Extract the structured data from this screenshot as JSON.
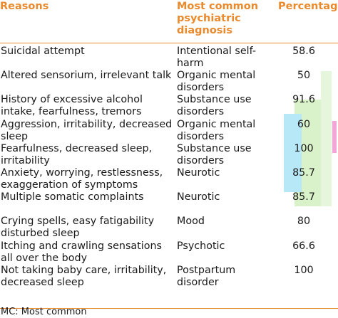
{
  "table": {
    "headers": {
      "reasons": "Reasons",
      "diagnosis": "Most common psychiatric diagnosis",
      "percentage": "Percentage"
    },
    "rows": [
      {
        "reason": "Suicidal attempt",
        "diagnosis": "Intentional self-harm",
        "percentage": "58.6"
      },
      {
        "reason": "Altered sensorium, irrelevant talk",
        "diagnosis": "Organic mental disorders",
        "percentage": "50"
      },
      {
        "reason": "History of excessive alcohol intake, fearfulness, tremors",
        "diagnosis": "Substance use disorders",
        "percentage": "91.6"
      },
      {
        "reason": "Aggression, irritability, decreased sleep",
        "diagnosis": "Organic mental disorders",
        "percentage": "60"
      },
      {
        "reason": "Fearfulness, decreased sleep, irritability",
        "diagnosis": "Substance use disorders",
        "percentage": "100"
      },
      {
        "reason": "Anxiety, worrying, restlessness, exaggeration of symptoms",
        "diagnosis": "Neurotic",
        "percentage": "85.7"
      },
      {
        "reason": "Multiple somatic complaints",
        "diagnosis": "Neurotic",
        "percentage": "85.7"
      },
      {
        "reason": "Crying spells, easy fatigability disturbed sleep",
        "diagnosis": "Mood",
        "percentage": "80"
      },
      {
        "reason": "Itching and crawling sensations all over the body",
        "diagnosis": "Psychotic",
        "percentage": "66.6"
      },
      {
        "reason": "Not taking baby care, irritability, decreased sleep",
        "diagnosis": "Postpartum disorder",
        "percentage": "100"
      }
    ]
  },
  "footnote": "MC: Most common",
  "colors": {
    "header": "#e98a2d",
    "rule": "#e98a2d",
    "highlight_green": "#d9f2c9",
    "highlight_blue": "#b7e8f7",
    "highlight_pink": "#f2a6d8"
  }
}
